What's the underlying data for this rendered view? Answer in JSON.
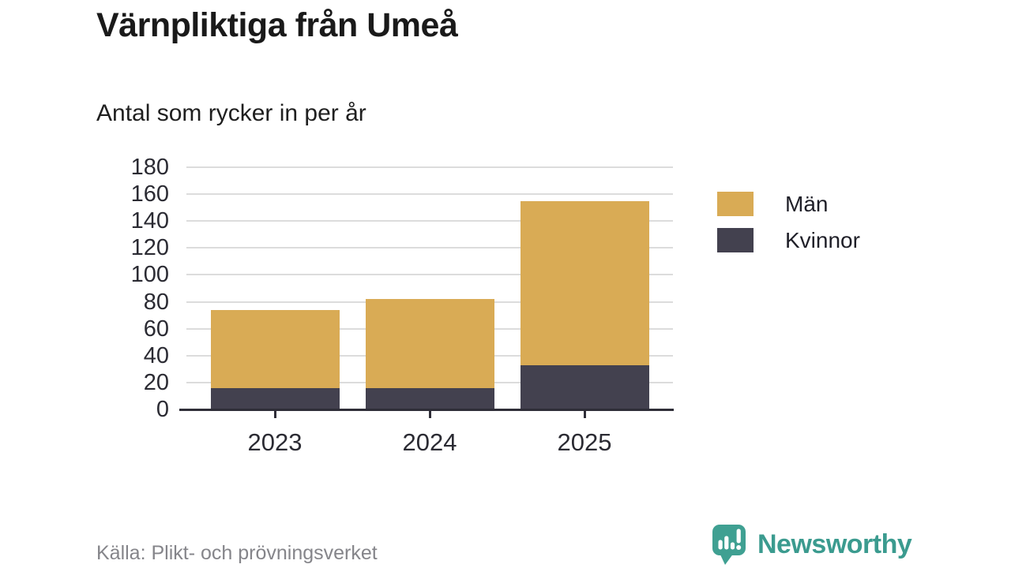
{
  "title": "Värnpliktiga från Umeå",
  "subtitle": "Antal som rycker in per år",
  "source": "Källa: Plikt- och prövningsverket",
  "branding": {
    "name": "Newsworthy",
    "color": "#3b9b8f",
    "logo_icon": "bar-chart-speech-bubble"
  },
  "chart_data": {
    "type": "bar",
    "stacked": true,
    "title": "Värnpliktiga från Umeå",
    "subtitle": "Antal som rycker in per år",
    "categories": [
      "2023",
      "2024",
      "2025"
    ],
    "series": [
      {
        "name": "Män",
        "color": "#d9ab55",
        "values": [
          58,
          66,
          122
        ]
      },
      {
        "name": "Kvinnor",
        "color": "#43414f",
        "values": [
          16,
          16,
          33
        ]
      }
    ],
    "stack_order_bottom_to_top": [
      "Kvinnor",
      "Män"
    ],
    "stack_totals": [
      74,
      82,
      155
    ],
    "xlabel": "",
    "ylabel": "",
    "ylim": [
      0,
      180
    ],
    "ytick_step": 20,
    "grid": "horizontal",
    "gridline_color": "#dcdcdc",
    "axis_color": "#2f2e38",
    "tick_label_color": "#2b2b33",
    "legend_position": "right"
  }
}
